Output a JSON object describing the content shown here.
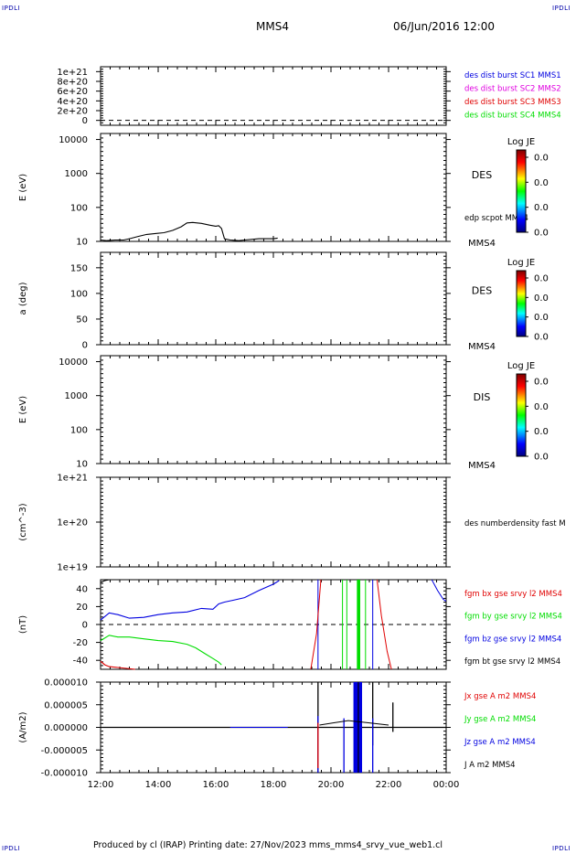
{
  "corner_tags": {
    "top_left": "IPDLI",
    "top_right": "IPDLI",
    "bottom_left": "IPDLI",
    "bottom_right": "IPDLI"
  },
  "header": {
    "spacecraft": "MMS4",
    "datetime": "06/Jun/2016 12:00"
  },
  "footer": {
    "text": "Produced by cl (IRAP)   Printing date: 27/Nov/2023   mms_mms4_srvy_vue_web1.cl"
  },
  "colors": {
    "red": "#e00000",
    "green": "#00dd00",
    "blue": "#0000e0",
    "magenta": "#e000e0",
    "black": "#000000"
  },
  "x_axis": {
    "range_hours": [
      12,
      24
    ],
    "tick_labels": [
      "12:00",
      "14:00",
      "16:00",
      "18:00",
      "20:00",
      "22:00",
      "00:00"
    ]
  },
  "chart_data": [
    {
      "type": "line",
      "id": "burst",
      "ylabel": "",
      "ylim": [
        -100000000000000000000,
        1100000000000000000000
      ],
      "y_ticks": [
        {
          "label": "1e+21",
          "value": 1e+21
        },
        {
          "label": "8e+20",
          "value": 8e+20
        },
        {
          "label": "6e+20",
          "value": 6e+20
        },
        {
          "label": "4e+20",
          "value": 4e+20
        },
        {
          "label": "2e+20",
          "value": 2e+20
        },
        {
          "label": "0",
          "value": 0
        }
      ],
      "zero_line": true,
      "legend": [
        {
          "label": "des dist burst SC1 MMS1",
          "color": "#0000e0"
        },
        {
          "label": "des dist burst SC2 MMS2",
          "color": "#e000e0"
        },
        {
          "label": "des dist burst SC3 MMS3",
          "color": "#e00000"
        },
        {
          "label": "des dist burst SC4 MMS4",
          "color": "#00dd00"
        }
      ]
    },
    {
      "type": "heatmap",
      "id": "des-energy",
      "ylabel": "E (eV)",
      "yscale": "log",
      "ylim": [
        10,
        15000
      ],
      "y_ticks": [
        {
          "label": "10000",
          "value": 10000
        },
        {
          "label": "1000",
          "value": 1000
        },
        {
          "label": "100",
          "value": 100
        },
        {
          "label": "10",
          "value": 10
        }
      ],
      "side_label": "DES",
      "sub_label": "MMS4",
      "overlay_label": "edp scpot MMS4",
      "colorbar": {
        "title": "Log JE",
        "ticks": [
          "0.0",
          "0.0",
          "0.0",
          "0.0"
        ]
      },
      "series": [
        {
          "name": "edp scpot MMS4",
          "color": "#000000",
          "x": [
            12.0,
            12.2,
            12.5,
            12.8,
            13.0,
            13.3,
            13.6,
            13.9,
            14.2,
            14.5,
            14.8,
            15.0,
            15.2,
            15.5,
            15.8,
            16.0,
            16.1,
            16.2,
            16.3,
            16.5,
            16.8,
            17.0,
            17.5,
            18.0,
            18.15
          ],
          "y": [
            11,
            10.5,
            11,
            11,
            12,
            14,
            16,
            17,
            18,
            21,
            27,
            35,
            36,
            34,
            30,
            28,
            29,
            24,
            12,
            11,
            10.5,
            11,
            12,
            12,
            12.5
          ]
        }
      ]
    },
    {
      "type": "heatmap",
      "id": "des-pitch",
      "ylabel": "a (deg)",
      "ylim": [
        0,
        180
      ],
      "y_ticks": [
        {
          "label": "150",
          "value": 150
        },
        {
          "label": "100",
          "value": 100
        },
        {
          "label": "50",
          "value": 50
        },
        {
          "label": "0",
          "value": 0
        }
      ],
      "side_label": "DES",
      "sub_label": "MMS4",
      "colorbar": {
        "title": "Log JE",
        "ticks": [
          "0.0",
          "0.0",
          "0.0",
          "0.0"
        ]
      }
    },
    {
      "type": "heatmap",
      "id": "dis-energy",
      "ylabel": "E (eV)",
      "yscale": "log",
      "ylim": [
        10,
        15000
      ],
      "y_ticks": [
        {
          "label": "10000",
          "value": 10000
        },
        {
          "label": "1000",
          "value": 1000
        },
        {
          "label": "100",
          "value": 100
        },
        {
          "label": "10",
          "value": 10
        }
      ],
      "side_label": "DIS",
      "sub_label": "MMS4",
      "colorbar": {
        "title": "Log JE",
        "ticks": [
          "0.0",
          "0.0",
          "0.0",
          "0.0"
        ]
      }
    },
    {
      "type": "line",
      "id": "density",
      "ylabel": "(cm^-3)",
      "yscale": "log",
      "ylim": [
        1e+19,
        1e+21
      ],
      "y_ticks": [
        {
          "label": "1e+21",
          "value": 1e+21
        },
        {
          "label": "1e+20",
          "value": 1e+20
        },
        {
          "label": "1e+19",
          "value": 1e+19
        }
      ],
      "legend": [
        {
          "label": "des numberdensity fast M",
          "color": "#000000"
        }
      ]
    },
    {
      "type": "line",
      "id": "fgm",
      "ylabel": "(nT)",
      "ylim": [
        -50,
        50
      ],
      "y_ticks": [
        {
          "label": "40",
          "value": 40
        },
        {
          "label": "20",
          "value": 20
        },
        {
          "label": "0",
          "value": 0
        },
        {
          "label": "-20",
          "value": -20
        },
        {
          "label": "-40",
          "value": -40
        }
      ],
      "zero_line": true,
      "legend": [
        {
          "label": "fgm bx gse srvy l2 MMS4",
          "color": "#e00000"
        },
        {
          "label": "fgm by gse srvy l2 MMS4",
          "color": "#00dd00"
        },
        {
          "label": "fgm bz gse srvy l2 MMS4",
          "color": "#0000e0"
        },
        {
          "label": "fgm bt gse srvy l2 MMS4",
          "color": "#000000"
        }
      ],
      "series": [
        {
          "name": "fgm bx gse srvy l2 MMS4",
          "color": "#e00000",
          "x": [
            12.0,
            12.15,
            12.3,
            12.6,
            12.9,
            13.2
          ],
          "y": [
            -41,
            -45,
            -47,
            -48,
            -49,
            -50
          ]
        },
        {
          "name": "fgm by gse srvy l2 MMS4",
          "color": "#00dd00",
          "x": [
            12.0,
            12.3,
            12.6,
            13.0,
            13.5,
            14.0,
            14.5,
            15.0,
            15.3,
            15.6,
            15.9,
            16.1,
            16.2
          ],
          "y": [
            -18,
            -12,
            -14,
            -14,
            -16,
            -18,
            -19,
            -22,
            -26,
            -32,
            -38,
            -42,
            -45
          ]
        },
        {
          "name": "fgm bz gse srvy l2 MMS4",
          "color": "#0000e0",
          "x": [
            12.0,
            12.3,
            12.6,
            13.0,
            13.5,
            14.0,
            14.5,
            15.0,
            15.5,
            15.9,
            16.1,
            16.3,
            16.6,
            17.0,
            17.5,
            18.0,
            18.2
          ],
          "y": [
            5,
            13,
            11,
            7,
            8,
            11,
            13,
            14,
            18,
            17,
            23,
            25,
            27,
            30,
            38,
            45,
            49
          ]
        },
        {
          "name": "fgm bt gse srvy l2 MMS4",
          "color": "#000000",
          "x": [
            12.0,
            12.15,
            12.3
          ],
          "y": [
            47,
            49,
            50
          ]
        }
      ]
    },
    {
      "type": "line",
      "id": "current",
      "ylabel": "(A/m2)",
      "ylim": [
        -1e-05,
        1e-05
      ],
      "y_ticks": [
        {
          "label": "0.000010",
          "value": 1e-05
        },
        {
          "label": "0.000005",
          "value": 5e-06
        },
        {
          "label": "0.000000",
          "value": 0
        },
        {
          "label": "-0.000005",
          "value": -5e-06
        },
        {
          "label": "-0.000010",
          "value": -1e-05
        }
      ],
      "legend": [
        {
          "label": "Jx gse A m2 MMS4",
          "color": "#e00000"
        },
        {
          "label": "Jy gse A m2 MMS4",
          "color": "#00dd00"
        },
        {
          "label": "Jz gse A m2 MMS4",
          "color": "#0000e0"
        },
        {
          "label": "J A m2 MMS4",
          "color": "#000000"
        }
      ]
    }
  ]
}
